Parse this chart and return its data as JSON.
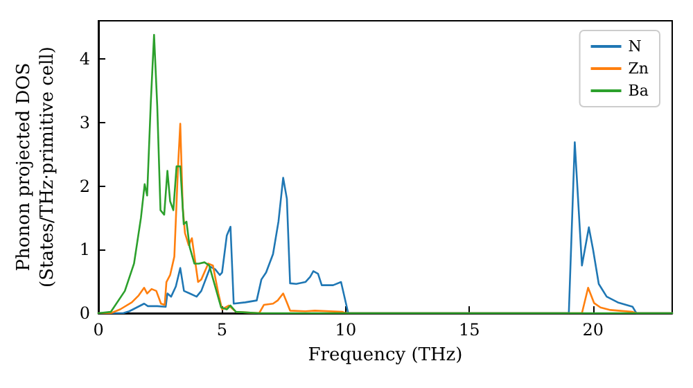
{
  "chart_data": {
    "type": "line",
    "xlabel": "Frequency (THz)",
    "ylabel": "Phonon projected DOS\n(States/THz·primitive cell)",
    "xlim": [
      0,
      23.2
    ],
    "ylim": [
      0,
      4.6
    ],
    "xticks": [
      0,
      5,
      10,
      15,
      20
    ],
    "yticks": [
      0,
      1,
      2,
      3,
      4
    ],
    "grid": false,
    "legend": "top right",
    "marker": "none",
    "line_style": "solid",
    "series": [
      {
        "name": "N",
        "color": "#1f77b4",
        "x": [
          0,
          1.0,
          1.25,
          1.85,
          2.0,
          2.38,
          2.72,
          2.79,
          2.94,
          3.13,
          3.31,
          3.46,
          3.69,
          3.97,
          4.16,
          4.53,
          4.72,
          4.91,
          5.0,
          5.19,
          5.34,
          5.47,
          5.94,
          6.4,
          6.59,
          6.78,
          7.06,
          7.28,
          7.47,
          7.62,
          7.75,
          8.0,
          8.37,
          8.56,
          8.69,
          8.88,
          9.03,
          9.49,
          9.81,
          10.1,
          19.02,
          19.26,
          19.55,
          19.83,
          20.0,
          20.23,
          20.55,
          21.0,
          21.6,
          21.75,
          23.2
        ],
        "values": [
          0,
          0,
          0.03,
          0.15,
          0.11,
          0.11,
          0.1,
          0.31,
          0.26,
          0.42,
          0.71,
          0.35,
          0.31,
          0.26,
          0.35,
          0.73,
          0.69,
          0.6,
          0.64,
          1.22,
          1.36,
          0.15,
          0.17,
          0.2,
          0.53,
          0.64,
          0.93,
          1.44,
          2.13,
          1.8,
          0.47,
          0.46,
          0.49,
          0.57,
          0.66,
          0.62,
          0.44,
          0.44,
          0.49,
          0,
          0,
          2.69,
          0.75,
          1.35,
          1.0,
          0.46,
          0.26,
          0.17,
          0.1,
          0,
          0
        ]
      },
      {
        "name": "Zn",
        "color": "#ff7f0e",
        "x": [
          0,
          0.5,
          0.88,
          1.35,
          1.63,
          1.85,
          1.97,
          2.15,
          2.34,
          2.53,
          2.68,
          2.75,
          2.9,
          3.07,
          3.22,
          3.31,
          3.41,
          3.5,
          3.65,
          3.78,
          4.03,
          4.16,
          4.44,
          4.63,
          4.85,
          5.0,
          5.28,
          5.56,
          6.5,
          6.69,
          7.06,
          7.25,
          7.47,
          7.62,
          7.75,
          8.37,
          8.75,
          9.87,
          10.0,
          19.55,
          19.8,
          20.04,
          20.3,
          20.7,
          21.6,
          21.75,
          23.2
        ],
        "values": [
          0,
          0,
          0.06,
          0.17,
          0.28,
          0.4,
          0.31,
          0.38,
          0.35,
          0.15,
          0.13,
          0.49,
          0.6,
          0.89,
          2.31,
          2.98,
          1.66,
          1.26,
          1.07,
          1.18,
          0.49,
          0.53,
          0.78,
          0.75,
          0.31,
          0.06,
          0.12,
          0.02,
          0,
          0.13,
          0.15,
          0.2,
          0.31,
          0.17,
          0.04,
          0.03,
          0.04,
          0.02,
          0,
          0,
          0.4,
          0.16,
          0.09,
          0.05,
          0.02,
          0,
          0
        ]
      },
      {
        "name": "Ba",
        "color": "#2ca02c",
        "x": [
          0,
          0.5,
          1.07,
          1.44,
          1.72,
          1.87,
          1.97,
          2.12,
          2.25,
          2.38,
          2.51,
          2.66,
          2.79,
          2.9,
          3.03,
          3.16,
          3.31,
          3.45,
          3.56,
          3.69,
          3.88,
          4.06,
          4.29,
          4.48,
          4.72,
          4.96,
          5.19,
          5.34,
          5.56,
          6.5,
          23.2
        ],
        "values": [
          0,
          0.02,
          0.35,
          0.78,
          1.5,
          2.03,
          1.85,
          3.33,
          4.38,
          3.25,
          1.62,
          1.55,
          2.24,
          1.76,
          1.62,
          2.31,
          2.31,
          1.4,
          1.44,
          1.04,
          0.78,
          0.78,
          0.8,
          0.75,
          0.42,
          0.09,
          0.06,
          0.12,
          0.02,
          0,
          0
        ]
      }
    ]
  }
}
